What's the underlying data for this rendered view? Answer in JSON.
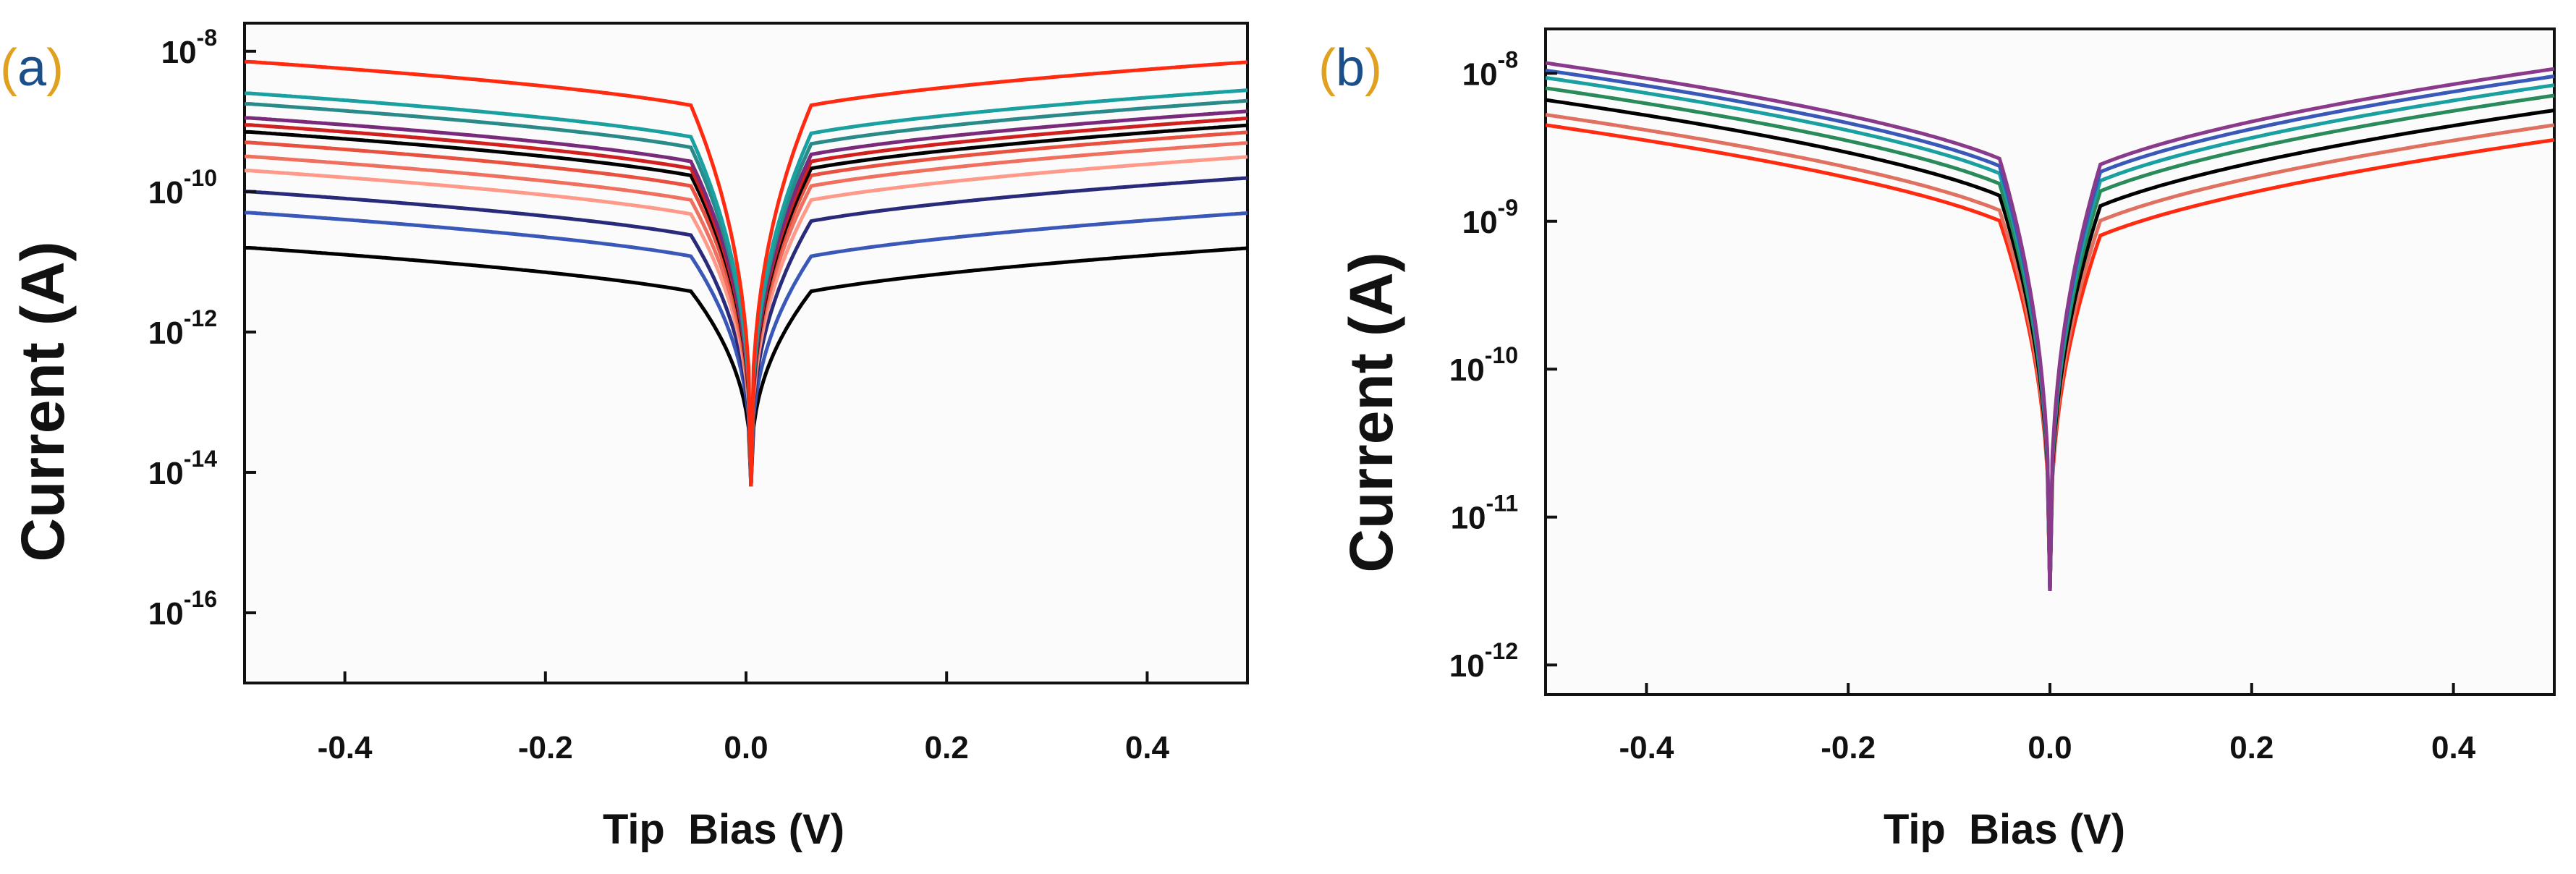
{
  "figure": {
    "panel_a_label": "(a)",
    "panel_b_label": "(b)"
  },
  "chart_data": [
    {
      "type": "line",
      "panel": "a",
      "title": "",
      "xlabel": "Tip  Bias (V)",
      "ylabel": "Current (A)",
      "x_scale": "linear",
      "y_scale": "log",
      "xlim": [
        -0.5,
        0.5
      ],
      "ylim_log10": [
        -17,
        -7.6
      ],
      "x_ticks": [
        -0.4,
        -0.2,
        0.0,
        0.2,
        0.4
      ],
      "x_tick_labels": [
        "-0.4",
        "-0.2",
        "0.0",
        "0.2",
        "0.4"
      ],
      "y_ticks": [
        {
          "base": "10",
          "exp": "-8",
          "log": -8
        },
        {
          "base": "10",
          "exp": "-10",
          "log": -10
        },
        {
          "base": "10",
          "exp": "-12",
          "log": -12
        },
        {
          "base": "10",
          "exp": "-14",
          "log": -14
        },
        {
          "base": "10",
          "exp": "-16",
          "log": -16
        }
      ],
      "curve_shape": {
        "v0": 0.005,
        "min_log10": -14.2,
        "width_v": 0.06
      },
      "series": [
        {
          "name": "s1",
          "color": "#000000",
          "log10_at_minus_0.5": -10.8,
          "log10_at_plus_0.5": -10.8
        },
        {
          "name": "s2",
          "color": "#3a58b8",
          "log10_at_minus_0.5": -10.3,
          "log10_at_plus_0.5": -10.3
        },
        {
          "name": "s3",
          "color": "#2a2a7a",
          "log10_at_minus_0.5": -10.0,
          "log10_at_plus_0.5": -9.8
        },
        {
          "name": "s4",
          "color": "#ff9a8a",
          "log10_at_minus_0.5": -9.7,
          "log10_at_plus_0.5": -9.5
        },
        {
          "name": "s5",
          "color": "#f07060",
          "log10_at_minus_0.5": -9.5,
          "log10_at_plus_0.5": -9.3
        },
        {
          "name": "s6",
          "color": "#e85040",
          "log10_at_minus_0.5": -9.3,
          "log10_at_plus_0.5": -9.15
        },
        {
          "name": "s7",
          "color": "#000000",
          "log10_at_minus_0.5": -9.15,
          "log10_at_plus_0.5": -9.05
        },
        {
          "name": "s8",
          "color": "#d02020",
          "log10_at_minus_0.5": -9.05,
          "log10_at_plus_0.5": -8.95
        },
        {
          "name": "s9",
          "color": "#7a2a7a",
          "log10_at_minus_0.5": -8.95,
          "log10_at_plus_0.5": -8.85
        },
        {
          "name": "s10",
          "color": "#2a8a8a",
          "log10_at_minus_0.5": -8.75,
          "log10_at_plus_0.5": -8.7
        },
        {
          "name": "s11",
          "color": "#1aa0a0",
          "log10_at_minus_0.5": -8.6,
          "log10_at_plus_0.5": -8.55
        },
        {
          "name": "s12",
          "color": "#ff2a10",
          "log10_at_minus_0.5": -8.15,
          "log10_at_plus_0.5": -8.15
        }
      ]
    },
    {
      "type": "line",
      "panel": "b",
      "title": "",
      "xlabel": "Tip  Bias (V)",
      "ylabel": "Current (A)",
      "x_scale": "linear",
      "y_scale": "log",
      "xlim": [
        -0.5,
        0.5
      ],
      "ylim_log10": [
        -12.2,
        -7.7
      ],
      "x_ticks": [
        -0.4,
        -0.2,
        0.0,
        0.2,
        0.4
      ],
      "x_tick_labels": [
        "-0.4",
        "-0.2",
        "0.0",
        "0.2",
        "0.4"
      ],
      "y_ticks": [
        {
          "base": "10",
          "exp": "-8",
          "log": -8
        },
        {
          "base": "10",
          "exp": "-9",
          "log": -9
        },
        {
          "base": "10",
          "exp": "-10",
          "log": -10
        },
        {
          "base": "10",
          "exp": "-11",
          "log": -11
        },
        {
          "base": "10",
          "exp": "-12",
          "log": -12
        }
      ],
      "curve_shape": {
        "v0": 0.0,
        "min_log10": -11.5,
        "width_v": 0.05
      },
      "series": [
        {
          "name": "s1",
          "color": "#ff2a10",
          "log10_at_minus_0.5": -8.35,
          "log10_at_plus_0.5": -8.45
        },
        {
          "name": "s2",
          "color": "#e07060",
          "log10_at_minus_0.5": -8.28,
          "log10_at_plus_0.5": -8.35
        },
        {
          "name": "s3",
          "color": "#000000",
          "log10_at_minus_0.5": -8.18,
          "log10_at_plus_0.5": -8.25
        },
        {
          "name": "s4",
          "color": "#2a8a5a",
          "log10_at_minus_0.5": -8.1,
          "log10_at_plus_0.5": -8.15
        },
        {
          "name": "s5",
          "color": "#1aa0a0",
          "log10_at_minus_0.5": -8.03,
          "log10_at_plus_0.5": -8.08
        },
        {
          "name": "s6",
          "color": "#3a58b8",
          "log10_at_minus_0.5": -7.98,
          "log10_at_plus_0.5": -8.02
        },
        {
          "name": "s7",
          "color": "#8a3a8a",
          "log10_at_minus_0.5": -7.93,
          "log10_at_plus_0.5": -7.97
        }
      ]
    }
  ]
}
